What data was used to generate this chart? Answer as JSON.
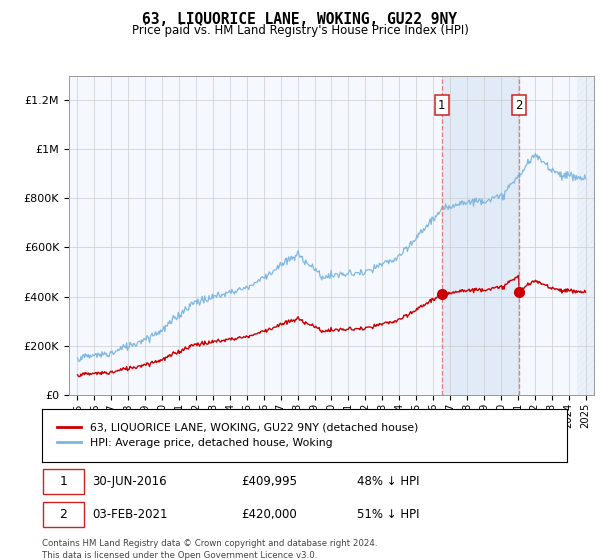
{
  "title": "63, LIQUORICE LANE, WOKING, GU22 9NY",
  "subtitle": "Price paid vs. HM Land Registry's House Price Index (HPI)",
  "hpi_label": "HPI: Average price, detached house, Woking",
  "price_label": "63, LIQUORICE LANE, WOKING, GU22 9NY (detached house)",
  "annotation1": {
    "label": "1",
    "date": "30-JUN-2016",
    "price": 409995,
    "pct": "48% ↓ HPI"
  },
  "annotation2": {
    "label": "2",
    "date": "03-FEB-2021",
    "price": 420000,
    "pct": "51% ↓ HPI"
  },
  "footnote": "Contains HM Land Registry data © Crown copyright and database right 2024.\nThis data is licensed under the Open Government Licence v3.0.",
  "hpi_color": "#7ab5e0",
  "price_color": "#cc0000",
  "bg_color": "#f5f8ff",
  "shade_color": "#dce8f5",
  "ylim": [
    0,
    1300000
  ],
  "yticks": [
    0,
    200000,
    400000,
    600000,
    800000,
    1000000,
    1200000
  ],
  "ytick_labels": [
    "£0",
    "£200K",
    "£400K",
    "£600K",
    "£800K",
    "£1M",
    "£1.2M"
  ],
  "sale1_year": 2016.5,
  "sale2_year": 2021.083,
  "sale1_price": 409995,
  "sale2_price": 420000,
  "xmin": 1994.5,
  "xmax": 2025.5
}
